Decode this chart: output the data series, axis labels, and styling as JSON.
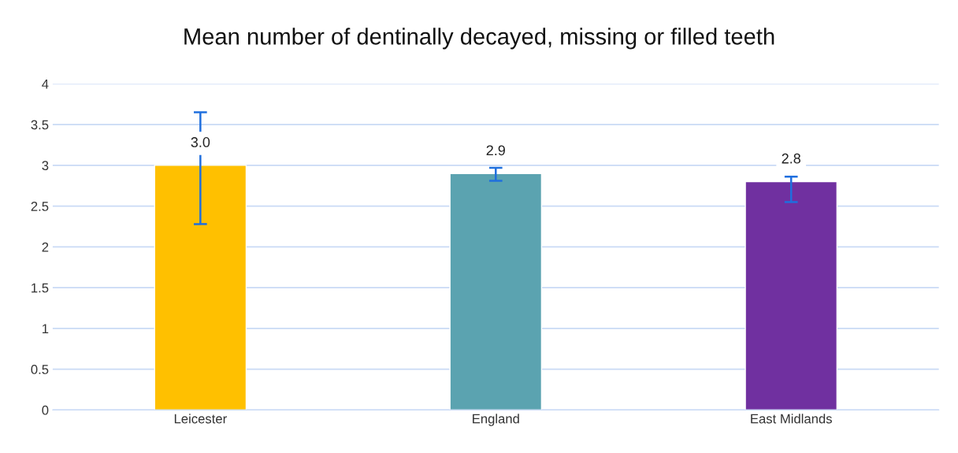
{
  "chart_data": {
    "type": "bar",
    "title": "Mean number of dentinally decayed, missing or filled teeth",
    "categories": [
      "Leicester",
      "England",
      "East Midlands"
    ],
    "values": [
      3.0,
      2.9,
      2.8
    ],
    "colors": [
      "#ffc000",
      "#5ba3b0",
      "#7030a0"
    ],
    "errors": [
      [
        2.28,
        3.65
      ],
      [
        2.81,
        2.97
      ],
      [
        2.55,
        2.86
      ]
    ],
    "ylim": [
      0,
      4
    ],
    "yticks": [
      0,
      0.5,
      1,
      1.5,
      2,
      2.5,
      3,
      3.5,
      4
    ],
    "value_labels": [
      "3.0",
      "2.9",
      "2.8"
    ],
    "grid": "y"
  }
}
